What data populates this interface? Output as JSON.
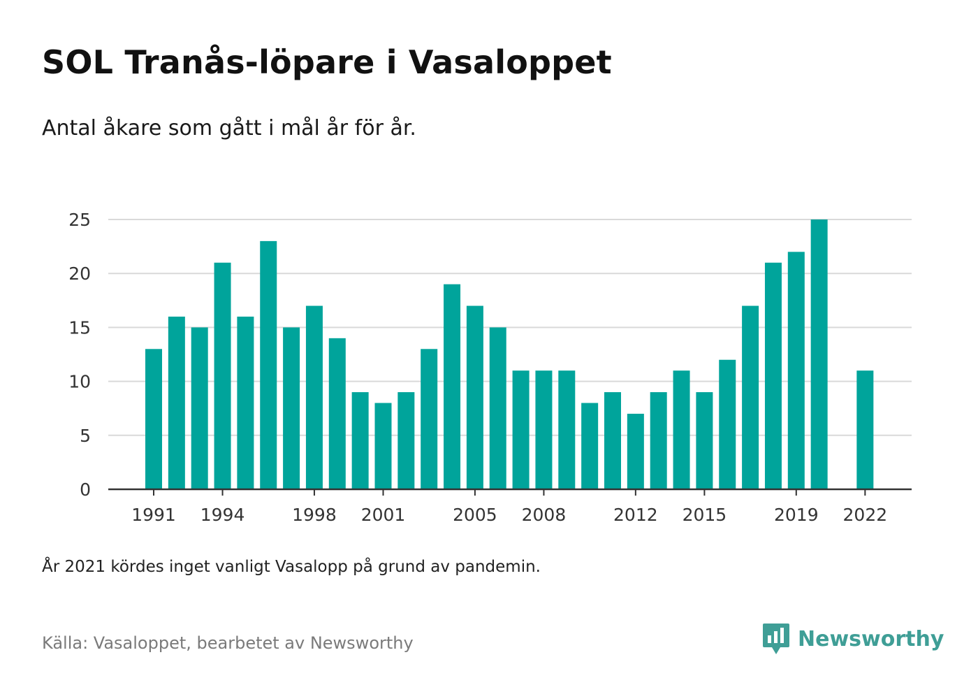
{
  "title": "SOL Tranås-löpare i Vasaloppet",
  "subtitle": "Antal åkare som gått i mål år för år.",
  "note": "År 2021 kördes inget vanligt Vasalopp på grund av pandemin.",
  "source": "Källa: Vasaloppet, bearbetet av Newsworthy",
  "logo": {
    "text": "Newsworthy",
    "icon": "newsworthy-chart-bubble-icon"
  },
  "colors": {
    "bar": "#00a49b",
    "grid": "#d9d9d9",
    "axis": "#333333",
    "brand": "#3f9e96"
  },
  "chart_data": {
    "type": "bar",
    "categories": [
      1991,
      1992,
      1993,
      1994,
      1995,
      1996,
      1997,
      1998,
      1999,
      2000,
      2001,
      2002,
      2003,
      2004,
      2005,
      2006,
      2007,
      2008,
      2009,
      2010,
      2011,
      2012,
      2013,
      2014,
      2015,
      2016,
      2017,
      2018,
      2019,
      2020,
      2021,
      2022
    ],
    "values": [
      13,
      16,
      15,
      21,
      16,
      23,
      15,
      17,
      14,
      9,
      8,
      9,
      13,
      19,
      17,
      15,
      11,
      11,
      11,
      8,
      9,
      7,
      9,
      11,
      9,
      12,
      17,
      21,
      22,
      25,
      null,
      11
    ],
    "x_tick_labels": [
      "1991",
      "1994",
      "1998",
      "2001",
      "2005",
      "2008",
      "2012",
      "2015",
      "2019",
      "2022"
    ],
    "y_ticks": [
      0,
      5,
      10,
      15,
      20,
      25
    ],
    "ylim": [
      0,
      25
    ],
    "grid": true,
    "legend": "none"
  }
}
